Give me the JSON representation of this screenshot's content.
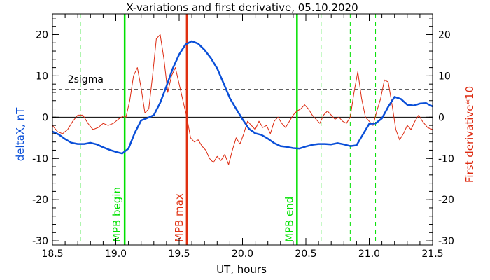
{
  "chart_data": {
    "type": "line",
    "title": "X-variations and first derivative, 05.10.2020",
    "xlabel": "UT, hours",
    "ylabel_left": "deltaX, nT",
    "ylabel_right": "First derivative*10",
    "xlim": [
      18.5,
      21.5
    ],
    "ylim": [
      -31,
      25
    ],
    "x_ticks": [
      18.5,
      19.0,
      19.5,
      20.0,
      20.5,
      21.0,
      21.5
    ],
    "x_tick_labels": [
      "18.5",
      "19.0",
      "19.5",
      "20.0",
      "20.5",
      "21.0",
      "21.5"
    ],
    "y_ticks": [
      -30,
      -20,
      -10,
      0,
      10,
      20
    ],
    "y_tick_labels": [
      "-30",
      "-20",
      "-10",
      "0",
      "10",
      "20"
    ],
    "grid": false,
    "colors": {
      "deltaX": "#0a4fd8",
      "derivative": "#dd2a10",
      "green": "#00e000",
      "red_marker": "#e03010",
      "axis": "#000000"
    },
    "series": [
      {
        "key": "deltaX",
        "x": [
          18.5,
          18.55,
          18.6,
          18.65,
          18.7,
          18.75,
          18.8,
          18.85,
          18.9,
          18.95,
          19.0,
          19.05,
          19.1,
          19.15,
          19.2,
          19.25,
          19.3,
          19.35,
          19.4,
          19.45,
          19.5,
          19.55,
          19.6,
          19.65,
          19.7,
          19.75,
          19.8,
          19.85,
          19.9,
          19.95,
          20.0,
          20.05,
          20.1,
          20.15,
          20.2,
          20.25,
          20.3,
          20.35,
          20.4,
          20.45,
          20.5,
          20.55,
          20.6,
          20.65,
          20.7,
          20.75,
          20.8,
          20.85,
          20.9,
          20.95,
          21.0,
          21.05,
          21.1,
          21.15,
          21.2,
          21.25,
          21.3,
          21.35,
          21.4,
          21.45,
          21.5
        ],
        "values": [
          -3.5,
          -4.2,
          -5.3,
          -6.2,
          -6.5,
          -6.5,
          -6.2,
          -6.6,
          -7.3,
          -7.9,
          -8.4,
          -8.8,
          -7.6,
          -3.8,
          -0.8,
          -0.2,
          0.5,
          3.5,
          7.5,
          11.8,
          15.2,
          17.6,
          18.4,
          17.8,
          16.3,
          14.3,
          11.8,
          8.2,
          4.6,
          2.0,
          -0.5,
          -2.8,
          -3.9,
          -4.3,
          -5.2,
          -6.3,
          -7.0,
          -7.2,
          -7.5,
          -7.6,
          -7.1,
          -6.7,
          -6.5,
          -6.5,
          -6.6,
          -6.3,
          -6.6,
          -7.0,
          -6.8,
          -4.2,
          -1.6,
          -1.5,
          -0.3,
          2.5,
          4.9,
          4.4,
          3.0,
          2.8,
          3.3,
          3.4,
          2.6
        ]
      },
      {
        "key": "derivative",
        "x": [
          18.5,
          18.54,
          18.58,
          18.62,
          18.66,
          18.7,
          18.74,
          18.78,
          18.82,
          18.86,
          18.9,
          18.94,
          18.98,
          19.02,
          19.06,
          19.08,
          19.11,
          19.14,
          19.17,
          19.2,
          19.23,
          19.26,
          19.29,
          19.32,
          19.35,
          19.38,
          19.41,
          19.44,
          19.47,
          19.5,
          19.53,
          19.56,
          19.59,
          19.62,
          19.65,
          19.68,
          19.71,
          19.74,
          19.77,
          19.8,
          19.83,
          19.86,
          19.89,
          19.92,
          19.95,
          19.98,
          20.01,
          20.04,
          20.07,
          20.1,
          20.13,
          20.16,
          20.19,
          20.22,
          20.25,
          20.28,
          20.31,
          20.34,
          20.37,
          20.4,
          20.43,
          20.46,
          20.49,
          20.52,
          20.55,
          20.58,
          20.61,
          20.64,
          20.67,
          20.7,
          20.73,
          20.76,
          20.79,
          20.82,
          20.85,
          20.88,
          20.91,
          20.94,
          20.97,
          21.0,
          21.03,
          21.06,
          21.09,
          21.12,
          21.15,
          21.18,
          21.21,
          21.24,
          21.27,
          21.3,
          21.33,
          21.36,
          21.39,
          21.42,
          21.46,
          21.5
        ],
        "values": [
          -2.0,
          -3.5,
          -4.0,
          -3.0,
          -1.0,
          0.5,
          0.5,
          -1.5,
          -3.0,
          -2.5,
          -1.5,
          -2.0,
          -1.5,
          -0.5,
          0.3,
          0.0,
          4.0,
          10.0,
          12.0,
          7.0,
          1.0,
          2.0,
          10.0,
          19.0,
          20.0,
          14.0,
          6.0,
          10.0,
          12.0,
          8.0,
          4.0,
          0.0,
          -5.0,
          -6.0,
          -5.5,
          -7.0,
          -8.0,
          -10.0,
          -11.0,
          -9.5,
          -10.5,
          -9.0,
          -11.5,
          -8.0,
          -5.0,
          -6.5,
          -4.0,
          -1.0,
          -2.0,
          -3.0,
          -1.0,
          -2.5,
          -2.0,
          -4.0,
          -1.0,
          0.0,
          -1.5,
          -2.5,
          -1.0,
          0.5,
          1.5,
          2.0,
          3.0,
          2.0,
          0.5,
          -0.5,
          -1.5,
          0.5,
          1.5,
          0.5,
          -0.5,
          0.0,
          -1.0,
          -1.5,
          0.0,
          6.0,
          11.0,
          4.5,
          0.0,
          -1.0,
          -2.0,
          1.5,
          4.5,
          9.0,
          8.5,
          3.0,
          -3.0,
          -5.5,
          -4.0,
          -2.0,
          -3.0,
          -1.0,
          0.5,
          -1.0,
          -2.5,
          -3.0
        ]
      }
    ],
    "reference_lines": {
      "two_sigma_y": 6.7,
      "zero_y": 0
    },
    "markers": {
      "begin_x": 19.07,
      "max_x": 19.56,
      "end_x": 20.43,
      "dashed_x": [
        18.72,
        20.62,
        20.85,
        21.05
      ]
    },
    "labels": {
      "two_sigma": "2sigma",
      "mpb_begin": "MPB begin",
      "mpb_max": "MPB max",
      "mpb_end": "MPB end"
    }
  }
}
